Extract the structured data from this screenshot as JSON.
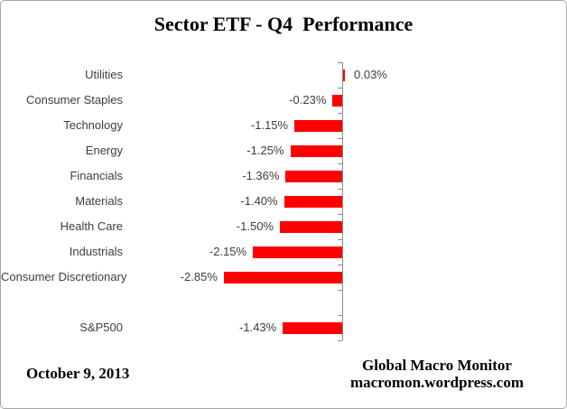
{
  "title": "Sector ETF - Q4  Performance",
  "footer": {
    "date": "October 9, 2013",
    "credit_line1": "Global Macro Monitor",
    "credit_line2": "macromon.wordpress.com"
  },
  "colors": {
    "bar": "#ff0000",
    "axis": "#8a8a8a",
    "label_text": "#3d3d3d",
    "title_text": "#000000",
    "border": "#a6a6a6"
  },
  "chart_data": {
    "type": "bar",
    "orientation": "horizontal",
    "title": "Sector ETF - Q4  Performance",
    "categories": [
      "Utilities",
      "Consumer Staples",
      "Technology",
      "Energy",
      "Financials",
      "Materials",
      "Health Care",
      "Industrials",
      "Consumer Discretionary",
      "",
      "S&P500"
    ],
    "values": [
      0.03,
      -0.23,
      -1.15,
      -1.25,
      -1.36,
      -1.4,
      -1.5,
      -2.15,
      -2.85,
      null,
      -1.43
    ],
    "value_labels": [
      "0.03%",
      "-0.23%",
      "-1.15%",
      "-1.25%",
      "-1.36%",
      "-1.40%",
      "-1.50%",
      "-2.15%",
      "-2.85%",
      "",
      "-1.43%"
    ],
    "xlim": [
      -3.2,
      0.5
    ],
    "xlabel": "",
    "ylabel": "",
    "grid": false,
    "legend": false,
    "data_labels": true
  }
}
